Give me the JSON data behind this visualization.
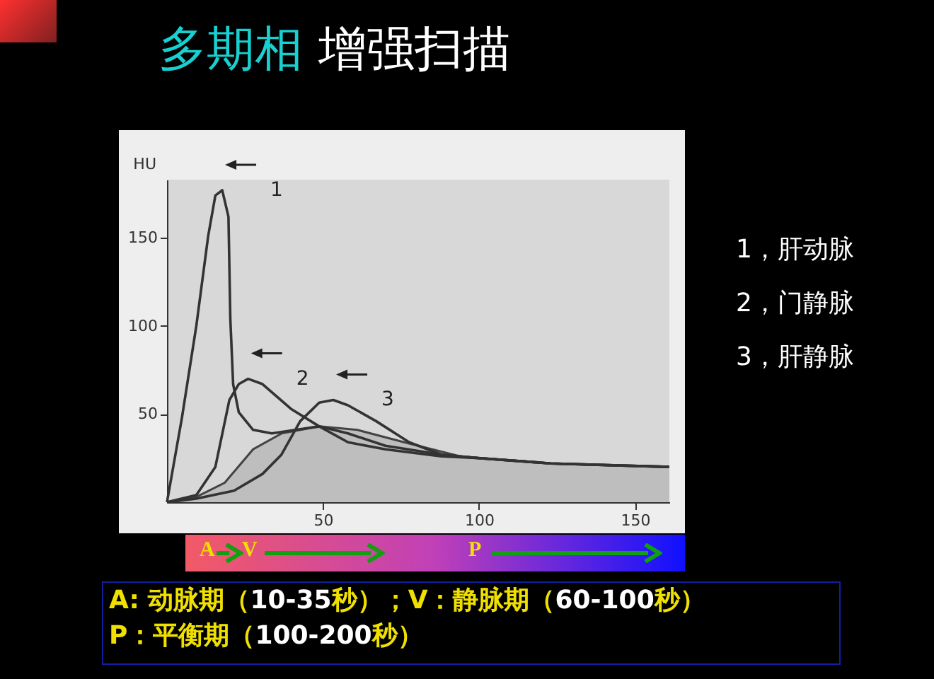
{
  "chart_data": {
    "type": "line",
    "title": "多期相 增强扫描",
    "ylabel": "HU",
    "xlim": [
      0,
      161
    ],
    "ylim": [
      0,
      183
    ],
    "xticks": [
      50,
      100,
      150
    ],
    "yticks": [
      50,
      100,
      150
    ],
    "grid": false,
    "series": [
      {
        "type": "area",
        "color": "#b4b4b4",
        "x": [
          0,
          9.4,
          18.5,
          27.6,
          36.7,
          48.8,
          61,
          76,
          94,
          123,
          161
        ],
        "values": [
          0,
          3,
          11,
          30,
          39,
          43,
          41,
          34,
          26,
          22,
          20
        ]
      },
      {
        "color": "#333333",
        "x": [
          0,
          4.8,
          9.4,
          13.2,
          15.5,
          17.7,
          19.7,
          20.3,
          21.2,
          23,
          27.6,
          33.6,
          48.8,
          58,
          70,
          88,
          100,
          123,
          161
        ],
        "values": [
          0,
          48,
          100,
          151,
          174,
          177,
          162,
          104,
          67,
          51,
          41,
          39,
          43,
          39,
          32,
          27,
          25,
          22,
          20
        ]
      },
      {
        "color": "#333333",
        "x": [
          0,
          9.4,
          15.5,
          20,
          23,
          26,
          30.6,
          39.7,
          48.8,
          58,
          70,
          88,
          100,
          123,
          161
        ],
        "values": [
          0,
          4,
          20,
          58,
          67,
          70,
          67,
          53,
          43,
          34,
          30,
          26,
          25,
          22,
          20
        ]
      },
      {
        "color": "#333333",
        "x": [
          0,
          9.4,
          21.5,
          30.6,
          36.7,
          42.7,
          48.8,
          53.3,
          58,
          67,
          77.6,
          88,
          100,
          123,
          161
        ],
        "values": [
          0,
          2,
          6.5,
          16,
          27,
          46,
          56.5,
          58,
          55,
          46,
          34,
          27,
          25,
          22,
          20
        ]
      }
    ],
    "annotations": [
      {
        "text": "1",
        "x": 17.7,
        "y": 177
      },
      {
        "text": "2",
        "x": 26,
        "y": 70
      },
      {
        "text": "3",
        "x": 53.3,
        "y": 58
      },
      "1，肝动脉",
      "2，门静脉",
      "3，肝静脉",
      "A",
      "V",
      "P",
      "A: 动脉期（10-35秒）；V：静脉期（60-100秒）",
      "P：平衡期（100-200秒）"
    ]
  }
}
